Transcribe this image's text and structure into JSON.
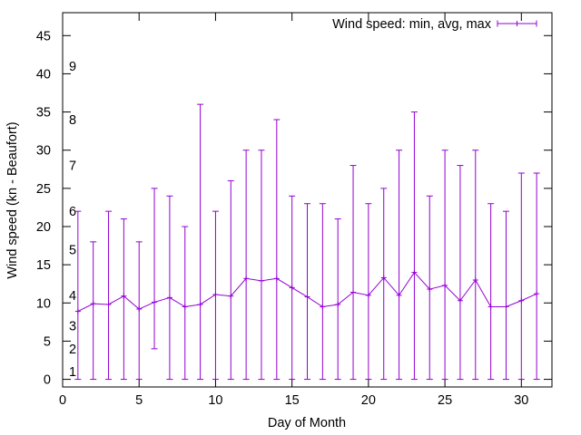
{
  "chart_data": {
    "type": "line",
    "title": "",
    "xlabel": "Day of Month",
    "ylabel": "Wind speed (kn - Beaufort)",
    "xlim": [
      0,
      32
    ],
    "ylim": [
      -1,
      48
    ],
    "xticks": [
      0,
      5,
      10,
      15,
      20,
      25,
      30
    ],
    "yticks": [
      0,
      5,
      10,
      15,
      20,
      25,
      30,
      35,
      40,
      45
    ],
    "beaufort_marks": [
      {
        "label": "1",
        "y": 1
      },
      {
        "label": "2",
        "y": 4
      },
      {
        "label": "3",
        "y": 7
      },
      {
        "label": "4",
        "y": 11
      },
      {
        "label": "5",
        "y": 17
      },
      {
        "label": "6",
        "y": 22
      },
      {
        "label": "7",
        "y": 28
      },
      {
        "label": "8",
        "y": 34
      },
      {
        "label": "9",
        "y": 41
      }
    ],
    "grid": false,
    "legend_position": "top-right",
    "series": [
      {
        "name": "Wind speed: min, avg, max",
        "color": "#9400d3",
        "x": [
          1,
          2,
          3,
          4,
          5,
          6,
          7,
          8,
          9,
          10,
          11,
          12,
          13,
          14,
          15,
          16,
          17,
          18,
          19,
          20,
          21,
          22,
          23,
          24,
          25,
          26,
          27,
          28,
          29,
          30,
          31
        ],
        "min": [
          0,
          0,
          0,
          0,
          0,
          4,
          0,
          0,
          0,
          0,
          0,
          0,
          0,
          0,
          0,
          0,
          0,
          0,
          0,
          0,
          0,
          0,
          0,
          0,
          0,
          0,
          0,
          0,
          0,
          0,
          0
        ],
        "avg": [
          8.9,
          9.9,
          9.8,
          10.9,
          9.2,
          10.1,
          10.7,
          9.5,
          9.8,
          11.1,
          10.9,
          13.2,
          12.9,
          13.2,
          12.0,
          10.8,
          9.5,
          9.8,
          11.4,
          11.0,
          13.3,
          11.0,
          14.0,
          11.8,
          12.3,
          10.3,
          13.0,
          9.5,
          9.5,
          10.3,
          11.2
        ],
        "max": [
          22,
          18,
          22,
          21,
          18,
          25,
          24,
          20,
          36,
          22,
          26,
          30,
          30,
          34,
          24,
          23,
          23,
          21,
          28,
          23,
          25,
          30,
          35,
          24,
          30,
          28,
          30,
          23,
          22,
          27,
          27
        ]
      }
    ]
  }
}
